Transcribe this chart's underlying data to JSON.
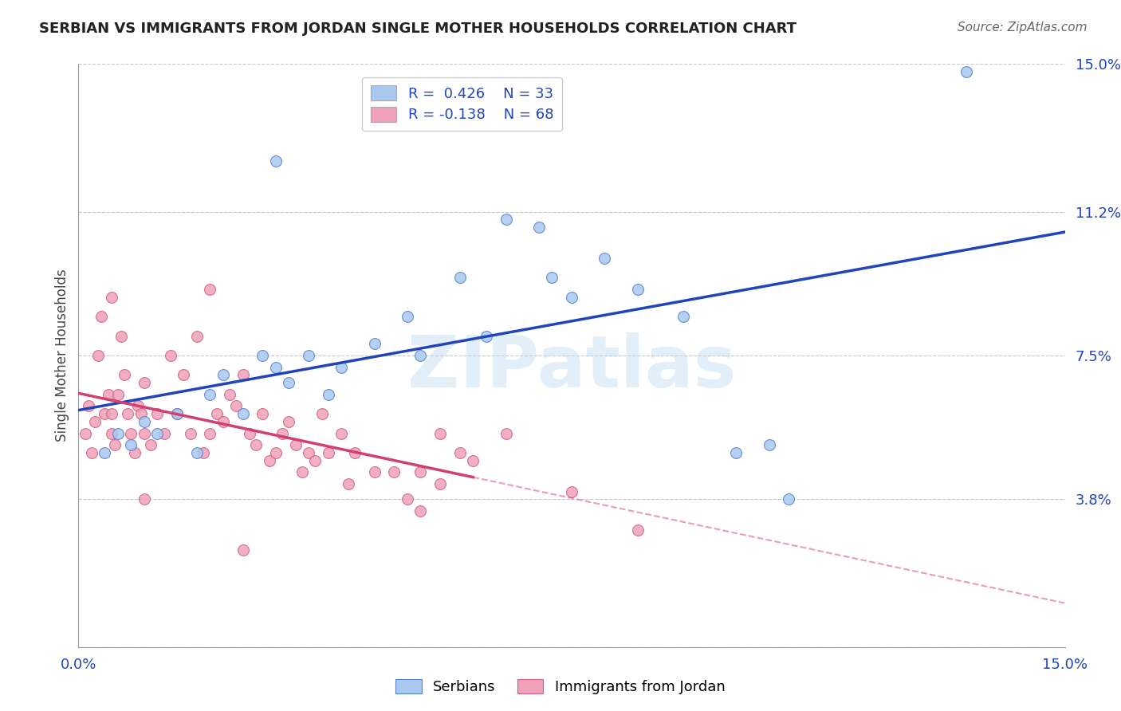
{
  "title": "SERBIAN VS IMMIGRANTS FROM JORDAN SINGLE MOTHER HOUSEHOLDS CORRELATION CHART",
  "source": "Source: ZipAtlas.com",
  "ylabel": "Single Mother Households",
  "watermark": "ZIPatlas",
  "xlim": [
    0.0,
    15.0
  ],
  "ylim": [
    0.0,
    15.0
  ],
  "yticks": [
    0.0,
    3.8,
    7.5,
    11.2,
    15.0
  ],
  "xticks": [
    0.0,
    15.0
  ],
  "grid_color": "#c8c8c8",
  "background_color": "#ffffff",
  "serbian": {
    "color": "#a8c8f0",
    "edge_color": "#5580cc",
    "line_color": "#2244bb",
    "label": "Serbians",
    "R": 0.426,
    "N": 33,
    "points": [
      [
        0.4,
        5.0
      ],
      [
        0.6,
        5.5
      ],
      [
        0.8,
        5.2
      ],
      [
        1.0,
        5.8
      ],
      [
        1.2,
        5.5
      ],
      [
        1.5,
        6.0
      ],
      [
        1.8,
        5.0
      ],
      [
        2.0,
        6.5
      ],
      [
        2.2,
        7.0
      ],
      [
        2.5,
        6.0
      ],
      [
        2.8,
        7.5
      ],
      [
        3.0,
        7.2
      ],
      [
        3.2,
        6.8
      ],
      [
        3.5,
        7.5
      ],
      [
        3.8,
        6.5
      ],
      [
        4.0,
        7.2
      ],
      [
        4.5,
        7.8
      ],
      [
        5.0,
        8.5
      ],
      [
        5.2,
        7.5
      ],
      [
        5.8,
        9.5
      ],
      [
        6.2,
        8.0
      ],
      [
        6.5,
        11.0
      ],
      [
        7.0,
        10.8
      ],
      [
        7.2,
        9.5
      ],
      [
        7.5,
        9.0
      ],
      [
        8.0,
        10.0
      ],
      [
        8.5,
        9.2
      ],
      [
        9.2,
        8.5
      ],
      [
        10.0,
        5.0
      ],
      [
        10.5,
        5.2
      ],
      [
        10.8,
        3.8
      ],
      [
        3.0,
        12.5
      ],
      [
        13.5,
        14.8
      ]
    ]
  },
  "jordan": {
    "color": "#f0a0b8",
    "edge_color": "#d06080",
    "line_color": "#d04070",
    "label": "Immigrants from Jordan",
    "R": -0.138,
    "N": 68,
    "points": [
      [
        0.1,
        5.5
      ],
      [
        0.15,
        6.2
      ],
      [
        0.2,
        5.0
      ],
      [
        0.25,
        5.8
      ],
      [
        0.3,
        7.5
      ],
      [
        0.35,
        8.5
      ],
      [
        0.4,
        6.0
      ],
      [
        0.45,
        6.5
      ],
      [
        0.5,
        5.5
      ],
      [
        0.5,
        6.0
      ],
      [
        0.55,
        5.2
      ],
      [
        0.6,
        6.5
      ],
      [
        0.65,
        8.0
      ],
      [
        0.7,
        7.0
      ],
      [
        0.75,
        6.0
      ],
      [
        0.8,
        5.5
      ],
      [
        0.85,
        5.0
      ],
      [
        0.9,
        6.2
      ],
      [
        0.95,
        6.0
      ],
      [
        1.0,
        6.8
      ],
      [
        1.0,
        5.5
      ],
      [
        1.1,
        5.2
      ],
      [
        1.2,
        6.0
      ],
      [
        1.3,
        5.5
      ],
      [
        1.4,
        7.5
      ],
      [
        1.5,
        6.0
      ],
      [
        1.6,
        7.0
      ],
      [
        1.7,
        5.5
      ],
      [
        1.8,
        8.0
      ],
      [
        1.9,
        5.0
      ],
      [
        2.0,
        5.5
      ],
      [
        2.1,
        6.0
      ],
      [
        2.2,
        5.8
      ],
      [
        2.3,
        6.5
      ],
      [
        2.4,
        6.2
      ],
      [
        2.5,
        7.0
      ],
      [
        2.6,
        5.5
      ],
      [
        2.7,
        5.2
      ],
      [
        2.8,
        6.0
      ],
      [
        2.9,
        4.8
      ],
      [
        3.0,
        5.0
      ],
      [
        3.1,
        5.5
      ],
      [
        3.2,
        5.8
      ],
      [
        3.3,
        5.2
      ],
      [
        3.4,
        4.5
      ],
      [
        3.5,
        5.0
      ],
      [
        3.6,
        4.8
      ],
      [
        3.7,
        6.0
      ],
      [
        3.8,
        5.0
      ],
      [
        4.0,
        5.5
      ],
      [
        4.1,
        4.2
      ],
      [
        4.2,
        5.0
      ],
      [
        4.5,
        4.5
      ],
      [
        4.8,
        4.5
      ],
      [
        5.0,
        3.8
      ],
      [
        5.2,
        4.5
      ],
      [
        5.5,
        5.5
      ],
      [
        5.8,
        5.0
      ],
      [
        6.0,
        4.8
      ],
      [
        6.5,
        5.5
      ],
      [
        7.5,
        4.0
      ],
      [
        8.5,
        3.0
      ],
      [
        0.5,
        9.0
      ],
      [
        2.0,
        9.2
      ],
      [
        2.5,
        2.5
      ],
      [
        5.5,
        4.2
      ],
      [
        5.2,
        3.5
      ],
      [
        1.0,
        3.8
      ]
    ]
  }
}
